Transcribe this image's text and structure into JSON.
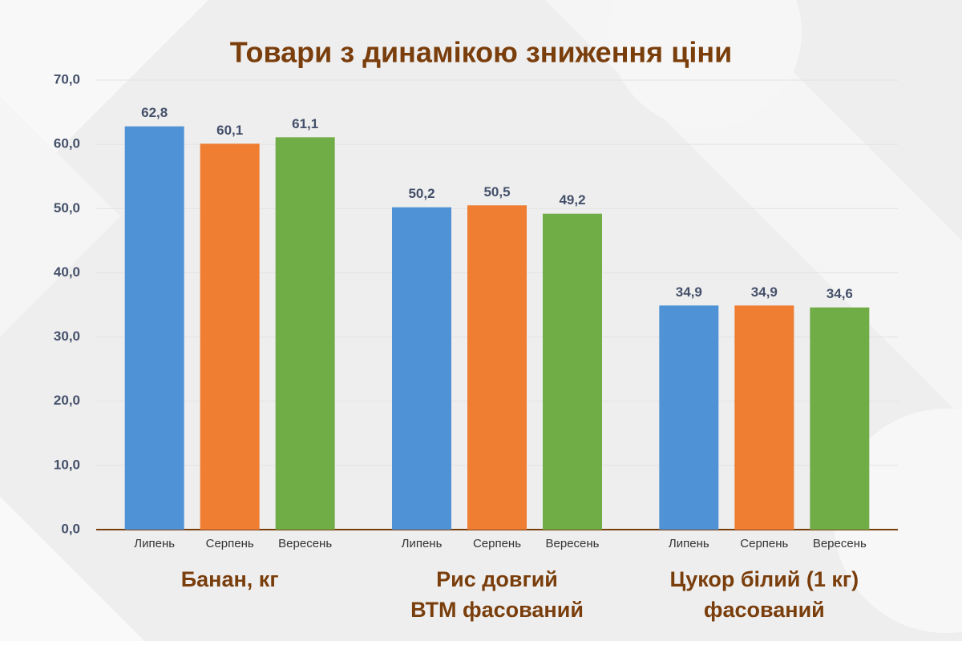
{
  "chart_data": {
    "type": "bar",
    "title": "Товари з динамікою зниження ціни",
    "groups": [
      [
        "Банан, кг"
      ],
      [
        "Рис довгий",
        "ВТМ фасований"
      ],
      [
        "Цукор білий (1 кг)",
        "фасований"
      ]
    ],
    "series": [
      {
        "name": "Липень",
        "color": "#4f93d6",
        "values": [
          62.8,
          50.2,
          34.9
        ],
        "value_labels": [
          "62,8",
          "50,2",
          "34,9"
        ]
      },
      {
        "name": "Серпень",
        "color": "#ef7d32",
        "values": [
          60.1,
          50.5,
          34.9
        ],
        "value_labels": [
          "60,1",
          "50,5",
          "34,9"
        ]
      },
      {
        "name": "Вересень",
        "color": "#70ad47",
        "values": [
          61.1,
          49.2,
          34.6
        ],
        "value_labels": [
          "61,1",
          "49,2",
          "34,6"
        ]
      }
    ],
    "ylim": [
      0,
      70
    ],
    "yticks": [
      {
        "value": 0,
        "label": "0,0"
      },
      {
        "value": 10,
        "label": "10,0"
      },
      {
        "value": 20,
        "label": "20,0"
      },
      {
        "value": 30,
        "label": "30,0"
      },
      {
        "value": 40,
        "label": "40,0"
      },
      {
        "value": 50,
        "label": "50,0"
      },
      {
        "value": 60,
        "label": "60,0"
      },
      {
        "value": 70,
        "label": "70,0"
      }
    ],
    "grid": true
  }
}
